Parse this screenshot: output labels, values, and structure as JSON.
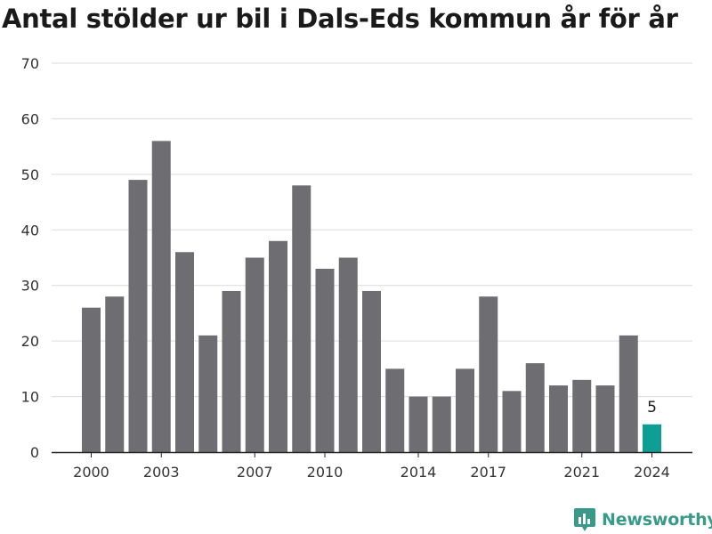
{
  "chart_data": {
    "type": "bar",
    "title": "Antal stölder ur bil i Dals-Eds kommun år för år",
    "xlabel": "",
    "ylabel": "",
    "ylim": [
      0,
      70
    ],
    "yticks": [
      0,
      10,
      20,
      30,
      40,
      50,
      60,
      70
    ],
    "xticks": [
      2000,
      2003,
      2007,
      2010,
      2014,
      2017,
      2021,
      2024
    ],
    "grid": true,
    "colors": {
      "bar": "#6e6d72",
      "highlight": "#0e9e93",
      "grid": "#dcdcdc"
    },
    "highlight_category": 2024,
    "highlight_label": "5",
    "categories": [
      2000,
      2001,
      2002,
      2003,
      2004,
      2005,
      2006,
      2007,
      2008,
      2009,
      2010,
      2011,
      2012,
      2013,
      2014,
      2015,
      2016,
      2017,
      2018,
      2019,
      2020,
      2021,
      2022,
      2023,
      2024
    ],
    "values": [
      26,
      28,
      49,
      56,
      36,
      21,
      29,
      35,
      38,
      48,
      33,
      35,
      29,
      15,
      10,
      10,
      15,
      28,
      11,
      16,
      12,
      13,
      12,
      21,
      5
    ]
  },
  "brand": {
    "name": "Newsworthy",
    "icon": "newsworthy-logo-icon",
    "color": "#3a9a8a"
  }
}
